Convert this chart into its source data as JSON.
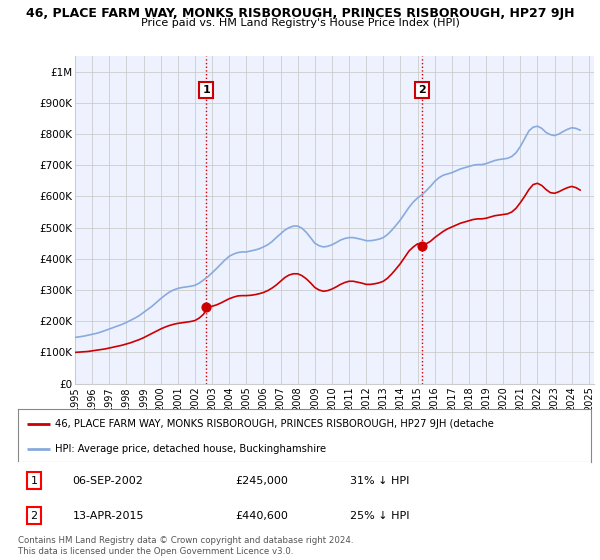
{
  "title": "46, PLACE FARM WAY, MONKS RISBOROUGH, PRINCES RISBOROUGH, HP27 9JH",
  "subtitle": "Price paid vs. HM Land Registry's House Price Index (HPI)",
  "ylim": [
    0,
    1050000
  ],
  "yticks": [
    0,
    100000,
    200000,
    300000,
    400000,
    500000,
    600000,
    700000,
    800000,
    900000,
    1000000
  ],
  "ytick_labels": [
    "£0",
    "£100K",
    "£200K",
    "£300K",
    "£400K",
    "£500K",
    "£600K",
    "£700K",
    "£800K",
    "£900K",
    "£1M"
  ],
  "sale1_x": 2002.67,
  "sale1_y": 245000,
  "sale2_x": 2015.25,
  "sale2_y": 440600,
  "sale1": {
    "date": "06-SEP-2002",
    "price": "£245,000",
    "pct": "31% ↓ HPI"
  },
  "sale2": {
    "date": "13-APR-2015",
    "price": "£440,600",
    "pct": "25% ↓ HPI"
  },
  "legend_property": "46, PLACE FARM WAY, MONKS RISBOROUGH, PRINCES RISBOROUGH, HP27 9JH (detache",
  "legend_hpi": "HPI: Average price, detached house, Buckinghamshire",
  "footer": "Contains HM Land Registry data © Crown copyright and database right 2024.\nThis data is licensed under the Open Government Licence v3.0.",
  "property_color": "#cc0000",
  "hpi_color": "#88aadd",
  "vline_color": "#cc0000",
  "hpi_data_x": [
    1995.0,
    1995.25,
    1995.5,
    1995.75,
    1996.0,
    1996.25,
    1996.5,
    1996.75,
    1997.0,
    1997.25,
    1997.5,
    1997.75,
    1998.0,
    1998.25,
    1998.5,
    1998.75,
    1999.0,
    1999.25,
    1999.5,
    1999.75,
    2000.0,
    2000.25,
    2000.5,
    2000.75,
    2001.0,
    2001.25,
    2001.5,
    2001.75,
    2002.0,
    2002.25,
    2002.5,
    2002.75,
    2003.0,
    2003.25,
    2003.5,
    2003.75,
    2004.0,
    2004.25,
    2004.5,
    2004.75,
    2005.0,
    2005.25,
    2005.5,
    2005.75,
    2006.0,
    2006.25,
    2006.5,
    2006.75,
    2007.0,
    2007.25,
    2007.5,
    2007.75,
    2008.0,
    2008.25,
    2008.5,
    2008.75,
    2009.0,
    2009.25,
    2009.5,
    2009.75,
    2010.0,
    2010.25,
    2010.5,
    2010.75,
    2011.0,
    2011.25,
    2011.5,
    2011.75,
    2012.0,
    2012.25,
    2012.5,
    2012.75,
    2013.0,
    2013.25,
    2013.5,
    2013.75,
    2014.0,
    2014.25,
    2014.5,
    2014.75,
    2015.0,
    2015.25,
    2015.5,
    2015.75,
    2016.0,
    2016.25,
    2016.5,
    2016.75,
    2017.0,
    2017.25,
    2017.5,
    2017.75,
    2018.0,
    2018.25,
    2018.5,
    2018.75,
    2019.0,
    2019.25,
    2019.5,
    2019.75,
    2020.0,
    2020.25,
    2020.5,
    2020.75,
    2021.0,
    2021.25,
    2021.5,
    2021.75,
    2022.0,
    2022.25,
    2022.5,
    2022.75,
    2023.0,
    2023.25,
    2023.5,
    2023.75,
    2024.0,
    2024.25,
    2024.5
  ],
  "hpi_data_y": [
    148000,
    150000,
    152000,
    155000,
    158000,
    161000,
    165000,
    170000,
    175000,
    180000,
    185000,
    190000,
    196000,
    203000,
    210000,
    218000,
    228000,
    238000,
    248000,
    260000,
    272000,
    283000,
    293000,
    300000,
    305000,
    308000,
    310000,
    312000,
    315000,
    322000,
    332000,
    342000,
    355000,
    368000,
    382000,
    396000,
    408000,
    415000,
    420000,
    422000,
    422000,
    425000,
    428000,
    432000,
    438000,
    445000,
    455000,
    468000,
    480000,
    492000,
    500000,
    505000,
    505000,
    498000,
    485000,
    468000,
    450000,
    442000,
    438000,
    440000,
    445000,
    452000,
    460000,
    465000,
    468000,
    468000,
    465000,
    462000,
    458000,
    458000,
    460000,
    463000,
    468000,
    478000,
    492000,
    508000,
    525000,
    545000,
    565000,
    582000,
    595000,
    605000,
    618000,
    632000,
    648000,
    660000,
    668000,
    672000,
    676000,
    682000,
    688000,
    692000,
    696000,
    700000,
    702000,
    702000,
    705000,
    710000,
    715000,
    718000,
    720000,
    722000,
    728000,
    740000,
    760000,
    785000,
    810000,
    822000,
    825000,
    818000,
    805000,
    798000,
    795000,
    800000,
    808000,
    815000,
    820000,
    818000,
    812000
  ],
  "prop_data_x": [
    1995.0,
    1995.25,
    1995.5,
    1995.75,
    1996.0,
    1996.25,
    1996.5,
    1996.75,
    1997.0,
    1997.25,
    1997.5,
    1997.75,
    1998.0,
    1998.25,
    1998.5,
    1998.75,
    1999.0,
    1999.25,
    1999.5,
    1999.75,
    2000.0,
    2000.25,
    2000.5,
    2000.75,
    2001.0,
    2001.25,
    2001.5,
    2001.75,
    2002.0,
    2002.25,
    2002.5,
    2002.75,
    2003.0,
    2003.25,
    2003.5,
    2003.75,
    2004.0,
    2004.25,
    2004.5,
    2004.75,
    2005.0,
    2005.25,
    2005.5,
    2005.75,
    2006.0,
    2006.25,
    2006.5,
    2006.75,
    2007.0,
    2007.25,
    2007.5,
    2007.75,
    2008.0,
    2008.25,
    2008.5,
    2008.75,
    2009.0,
    2009.25,
    2009.5,
    2009.75,
    2010.0,
    2010.25,
    2010.5,
    2010.75,
    2011.0,
    2011.25,
    2011.5,
    2011.75,
    2012.0,
    2012.25,
    2012.5,
    2012.75,
    2013.0,
    2013.25,
    2013.5,
    2013.75,
    2014.0,
    2014.25,
    2014.5,
    2014.75,
    2015.0,
    2015.25,
    2015.5,
    2015.75,
    2016.0,
    2016.25,
    2016.5,
    2016.75,
    2017.0,
    2017.25,
    2017.5,
    2017.75,
    2018.0,
    2018.25,
    2018.5,
    2018.75,
    2019.0,
    2019.25,
    2019.5,
    2019.75,
    2020.0,
    2020.25,
    2020.5,
    2020.75,
    2021.0,
    2021.25,
    2021.5,
    2021.75,
    2022.0,
    2022.25,
    2022.5,
    2022.75,
    2023.0,
    2023.25,
    2023.5,
    2023.75,
    2024.0,
    2024.25,
    2024.5
  ],
  "prop_data_y": [
    100000,
    101000,
    102000,
    103000,
    105000,
    107000,
    109000,
    111000,
    114000,
    117000,
    120000,
    123000,
    127000,
    131000,
    136000,
    141000,
    147000,
    154000,
    161000,
    168000,
    175000,
    181000,
    186000,
    190000,
    193000,
    195000,
    197000,
    199000,
    202000,
    210000,
    222000,
    245000,
    248000,
    252000,
    258000,
    265000,
    272000,
    277000,
    281000,
    282000,
    282000,
    283000,
    285000,
    288000,
    292000,
    298000,
    306000,
    316000,
    328000,
    340000,
    348000,
    352000,
    352000,
    346000,
    336000,
    323000,
    308000,
    300000,
    296000,
    298000,
    303000,
    310000,
    318000,
    324000,
    328000,
    328000,
    325000,
    322000,
    318000,
    318000,
    320000,
    323000,
    328000,
    338000,
    352000,
    368000,
    385000,
    405000,
    425000,
    438000,
    448000,
    440600,
    448000,
    456000,
    468000,
    478000,
    488000,
    496000,
    502000,
    508000,
    514000,
    518000,
    522000,
    526000,
    528000,
    528000,
    530000,
    534000,
    538000,
    540000,
    542000,
    544000,
    550000,
    562000,
    580000,
    600000,
    622000,
    638000,
    642000,
    635000,
    622000,
    612000,
    610000,
    615000,
    622000,
    628000,
    632000,
    628000,
    620000
  ],
  "xtick_years": [
    1995,
    1996,
    1997,
    1998,
    1999,
    2000,
    2001,
    2002,
    2003,
    2004,
    2005,
    2006,
    2007,
    2008,
    2009,
    2010,
    2011,
    2012,
    2013,
    2014,
    2015,
    2016,
    2017,
    2018,
    2019,
    2020,
    2021,
    2022,
    2023,
    2024,
    2025
  ],
  "grid_color": "#cccccc",
  "background_color": "#ffffff",
  "plot_bg_color": "#eef2ff"
}
